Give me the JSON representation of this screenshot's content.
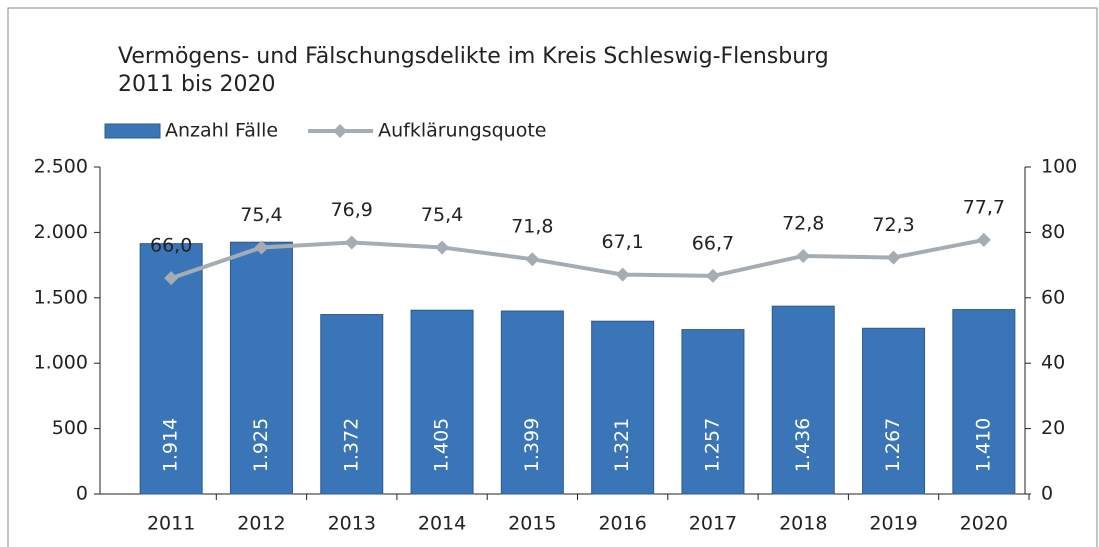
{
  "chart_data": {
    "type": "bar-line",
    "title": "Vermögens- und Fälschungsdelikte im Kreis Schleswig-Flensburg",
    "subtitle": "2011 bis 2020",
    "categories": [
      "2011",
      "2012",
      "2013",
      "2014",
      "2015",
      "2016",
      "2017",
      "2018",
      "2019",
      "2020"
    ],
    "series": [
      {
        "name": "Anzahl Fälle",
        "type": "bar",
        "color": "#3a75b8",
        "values": [
          1914,
          1925,
          1372,
          1405,
          1399,
          1321,
          1257,
          1436,
          1267,
          1410
        ],
        "value_labels": [
          "1.914",
          "1.925",
          "1.372",
          "1.405",
          "1.399",
          "1.321",
          "1.257",
          "1.436",
          "1.267",
          "1.410"
        ]
      },
      {
        "name": "Aufklärungsquote",
        "type": "line",
        "axis": "y2",
        "color": "#a5acb4",
        "values": [
          66.0,
          75.4,
          76.9,
          75.4,
          71.8,
          67.1,
          66.7,
          72.8,
          72.3,
          77.7
        ],
        "value_labels": [
          "66,0",
          "75,4",
          "76,9",
          "75,4",
          "71,8",
          "67,1",
          "66,7",
          "72,8",
          "72,3",
          "77,7"
        ]
      }
    ],
    "ylim": [
      0,
      2500
    ],
    "yticks": [
      0,
      500,
      {
        "value": 1000,
        "label": "1.000"
      },
      {
        "value": 1500,
        "label": "1.500"
      },
      {
        "value": 2000,
        "label": "2.000"
      },
      {
        "value": 2500,
        "label": "2.500"
      }
    ],
    "y2lim": [
      0,
      100
    ],
    "y2ticks": [
      0,
      20,
      40,
      60,
      80,
      100
    ],
    "legend": "top-left"
  }
}
